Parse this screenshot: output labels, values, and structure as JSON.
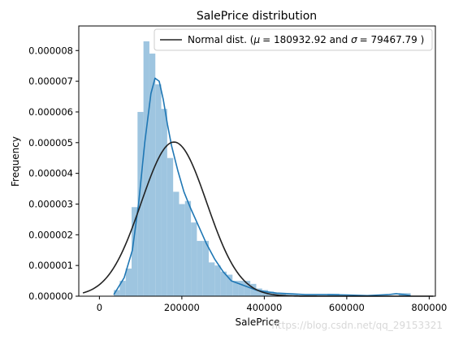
{
  "chart_data": {
    "type": "bar",
    "title": "SalePrice distribution",
    "xlabel": "SalePrice",
    "ylabel": "Frequency",
    "xlim": [
      -50000,
      815000
    ],
    "ylim": [
      0,
      8.8e-06
    ],
    "xticks": [
      0,
      200000,
      400000,
      600000,
      800000
    ],
    "xtick_labels": [
      "0",
      "200000",
      "400000",
      "600000",
      "800000"
    ],
    "yticks": [
      0,
      1e-06,
      2e-06,
      3e-06,
      4e-06,
      5e-06,
      6e-06,
      7e-06,
      8e-06
    ],
    "ytick_labels": [
      "0.000000",
      "0.000001",
      "0.000002",
      "0.000003",
      "0.000004",
      "0.000005",
      "0.000006",
      "0.000007",
      "0.000008"
    ],
    "histogram": {
      "color": "#9ec5e0",
      "bin_edges": [
        34900,
        49300,
        63700,
        78100,
        92500,
        106900,
        121300,
        135700,
        150100,
        164500,
        178900,
        193300,
        207700,
        222100,
        236500,
        250900,
        265300,
        279700,
        294100,
        308500,
        322900,
        337300,
        351700,
        366100,
        380500,
        394900,
        409300,
        423700,
        438100,
        452500,
        466900,
        481300,
        495700,
        510100,
        524500,
        538900,
        553300,
        567700,
        582100,
        596500,
        610900,
        625300,
        639700,
        654100,
        668500,
        682900,
        697300,
        711700,
        726100,
        740500,
        755000
      ],
      "values": [
        2e-07,
        5e-07,
        9e-07,
        2.9e-06,
        6e-06,
        8.3e-06,
        7.9e-06,
        6.9e-06,
        6.1e-06,
        4.5e-06,
        3.4e-06,
        3e-06,
        3.1e-06,
        2.4e-06,
        1.8e-06,
        1.8e-06,
        1.1e-06,
        1e-06,
        8e-07,
        7e-07,
        5e-07,
        5e-07,
        5e-07,
        4e-07,
        2.5e-07,
        2e-07,
        1.5e-07,
        1e-07,
        1e-07,
        5e-08,
        5e-08,
        3e-08,
        3e-08,
        2e-08,
        2e-08,
        2e-08,
        8e-08,
        8e-08,
        2e-08,
        2e-08,
        2e-08,
        0.0,
        0.0,
        0.0,
        0.0,
        0.0,
        0.0,
        0.0,
        1e-07,
        1e-07
      ]
    },
    "series": [
      {
        "kind": "kde",
        "color": "#1f77b4",
        "x": [
          34900,
          60000,
          80000,
          95000,
          110000,
          125000,
          135000,
          145000,
          155000,
          165000,
          175000,
          190000,
          205000,
          220000,
          240000,
          260000,
          280000,
          300000,
          320000,
          340000,
          360000,
          380000,
          400000,
          430000,
          460000,
          500000,
          550000,
          600000,
          650000,
          700000,
          720000,
          740000,
          755000
        ],
        "y": [
          5e-08,
          6e-07,
          1.5e-06,
          3e-06,
          5e-06,
          6.6e-06,
          7.1e-06,
          7e-06,
          6.4e-06,
          5.6e-06,
          4.9e-06,
          4.1e-06,
          3.4e-06,
          2.9e-06,
          2.3e-06,
          1.7e-06,
          1.2e-06,
          8e-07,
          5e-07,
          4e-07,
          3e-07,
          2e-07,
          1.5e-07,
          1e-07,
          8e-08,
          5e-08,
          5e-08,
          4e-08,
          2e-08,
          5e-08,
          8e-08,
          5e-08,
          2e-08
        ]
      },
      {
        "kind": "normal",
        "name": "Normal dist. ($\\mu=$ 180932.92 and $\\sigma=$ 79467.79 )",
        "color": "#222222",
        "mu": 180932.92,
        "sigma": 79467.79,
        "x_range": [
          -40000,
          810000
        ]
      }
    ],
    "legend": {
      "placement": "top-right",
      "label_text": "Normal dist. (",
      "mu_symbol": "μ",
      "mu_part": "= 180932.92 and ",
      "sigma_symbol": "σ",
      "sigma_part": "=  79467.79 )"
    },
    "grid": false
  },
  "watermark": "https://blog.csdn.net/qq_29153321"
}
